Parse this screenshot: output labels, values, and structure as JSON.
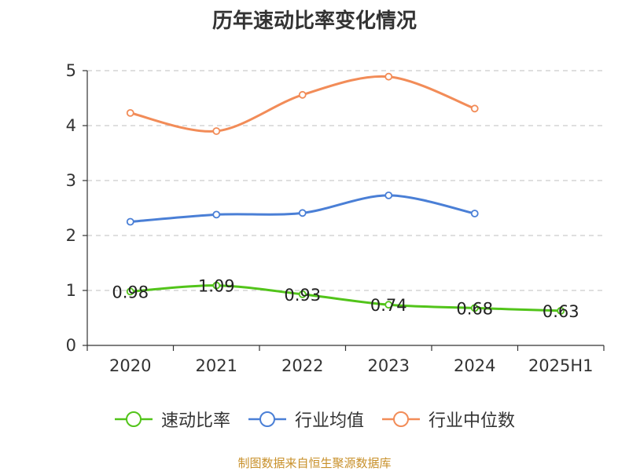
{
  "chart_data": {
    "type": "line",
    "title": "历年速动比率变化情况",
    "categories": [
      "2020",
      "2021",
      "2022",
      "2023",
      "2024",
      "2025H1"
    ],
    "ylim": [
      0,
      5
    ],
    "yticks": [
      "0",
      "1",
      "2",
      "3",
      "4",
      "5"
    ],
    "grid": true,
    "legend_position": "bottom",
    "series": [
      {
        "name": "速动比率",
        "color": "#52c41a",
        "values": [
          0.98,
          1.09,
          0.93,
          0.74,
          0.68,
          0.63
        ],
        "labels": [
          "0.98",
          "1.09",
          "0.93",
          "0.74",
          "0.68",
          "0.63"
        ]
      },
      {
        "name": "行业均值",
        "color": "#4a7fd6",
        "values": [
          2.25,
          2.38,
          2.41,
          2.73,
          2.4,
          null
        ]
      },
      {
        "name": "行业中位数",
        "color": "#f28c58",
        "values": [
          4.23,
          3.9,
          4.56,
          4.89,
          4.31,
          null
        ]
      }
    ]
  },
  "source_note": {
    "text": "制图数据来自恒生聚源数据库",
    "color": "#c8902a"
  }
}
